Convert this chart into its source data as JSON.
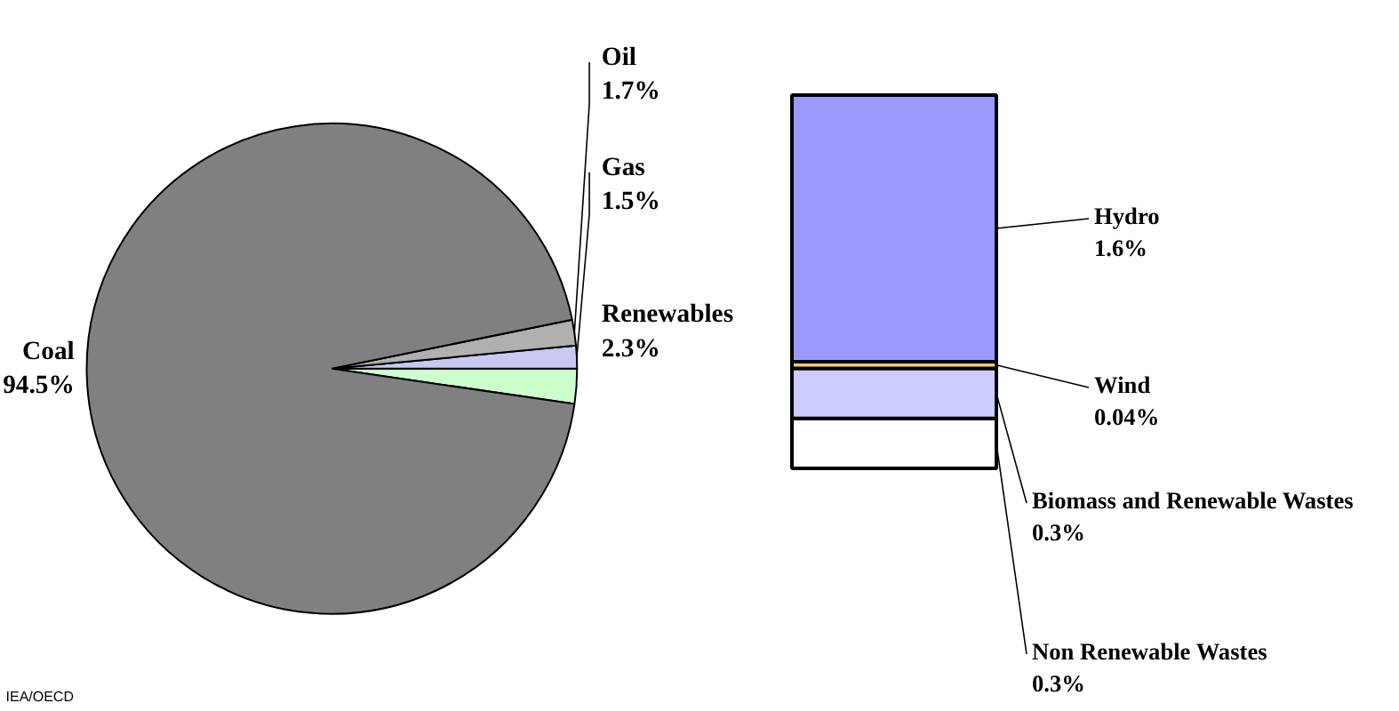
{
  "chart_data": [
    {
      "type": "pie",
      "categories": [
        "Coal",
        "Oil",
        "Gas",
        "Renewables"
      ],
      "values": [
        94.5,
        1.7,
        1.5,
        2.3
      ],
      "value_labels": [
        "94.5%",
        "1.7%",
        "1.5%",
        "2.3%"
      ],
      "colors": [
        "#808080",
        "#b0b0b0",
        "#c8c8f0",
        "#ccffcc"
      ],
      "annotations": [
        "IEA/OECD"
      ]
    },
    {
      "type": "bar",
      "stacked": true,
      "categories": [
        null
      ],
      "series": [
        {
          "name": "Non Renewable Wastes",
          "color": "#ffffff",
          "values": [
            0.3
          ],
          "value_labels": [
            "0.3%"
          ]
        },
        {
          "name": "Biomass and Renewable Wastes",
          "color": "#ccccff",
          "values": [
            0.3
          ],
          "value_labels": [
            "0.3%"
          ]
        },
        {
          "name": "Wind",
          "color": "#ffcc66",
          "values": [
            0.04
          ],
          "value_labels": [
            "0.04%"
          ]
        },
        {
          "name": "Hydro",
          "color": "#9999ff",
          "values": [
            1.6
          ],
          "value_labels": [
            "1.6%"
          ]
        }
      ]
    }
  ]
}
